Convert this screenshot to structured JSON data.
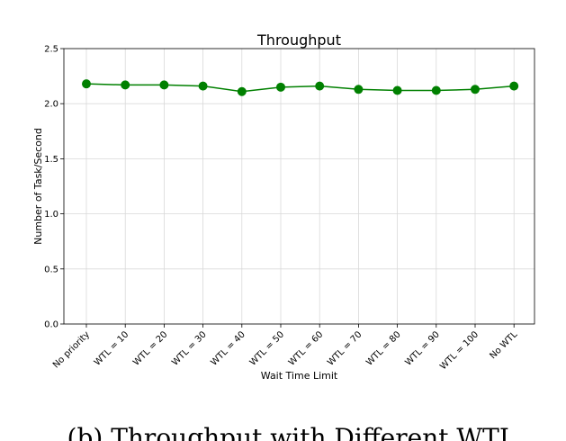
{
  "chart_data": {
    "type": "line",
    "title": "Throughput",
    "xlabel": "Wait Time Limit",
    "ylabel": "Number of Task/Second",
    "categories": [
      "No priority",
      "WTL = 10",
      "WTL = 20",
      "WTL = 30",
      "WTL = 40",
      "WTL = 50",
      "WTL = 60",
      "WTL = 70",
      "WTL = 80",
      "WTL = 90",
      "WTL = 100",
      "No WTL"
    ],
    "series": [
      {
        "values": [
          2.18,
          2.17,
          2.17,
          2.16,
          2.11,
          2.15,
          2.16,
          2.13,
          2.12,
          2.12,
          2.13,
          2.16
        ],
        "color": "#008000",
        "marker": "circle"
      }
    ],
    "ylim": [
      0,
      2.5
    ],
    "yticks": [
      "0.0",
      "0.5",
      "1.0",
      "1.5",
      "2.0",
      "2.5"
    ],
    "grid": true,
    "legend": "none"
  },
  "caption": "(b) Throughput with Different WTL"
}
